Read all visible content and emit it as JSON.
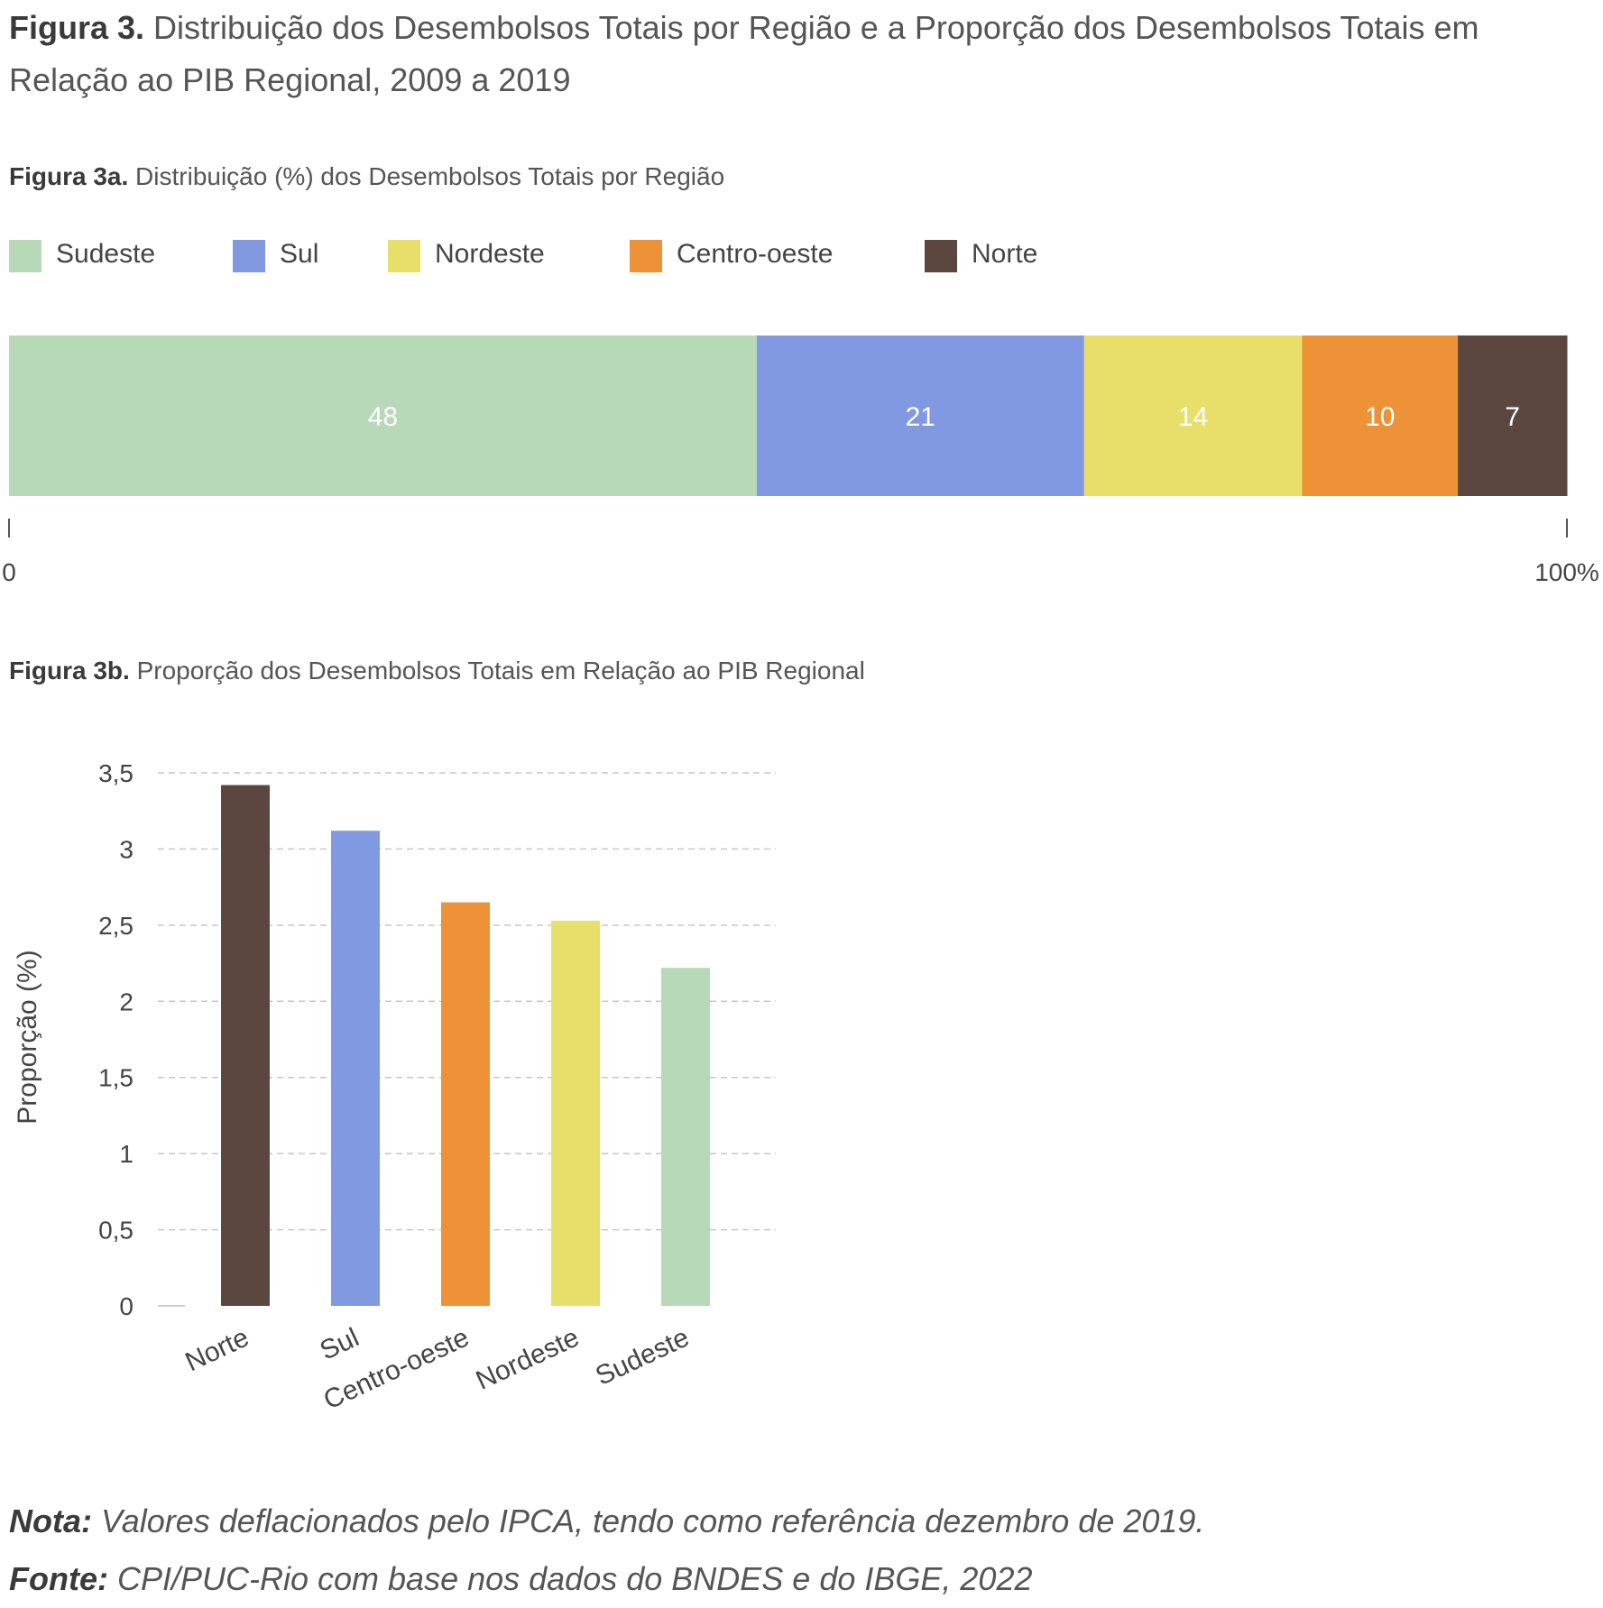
{
  "title": {
    "bold": "Figura 3.",
    "text": "Distribuição dos Desembolsos Totais por Região e a Proporção dos Desembolsos Totais em Relação ao PIB Regional, 2009 a 2019"
  },
  "fig3a": {
    "bold": "Figura 3a.",
    "text": "Distribuição (%) dos Desembolsos Totais por Região"
  },
  "fig3b": {
    "bold": "Figura 3b.",
    "text": "Proporção dos Desembolsos Totais em Relação ao PIB Regional"
  },
  "legend": [
    {
      "label": "Sudeste",
      "color": "#b8d9b8"
    },
    {
      "label": "Sul",
      "color": "#8099e0"
    },
    {
      "label": "Nordeste",
      "color": "#e8df6a"
    },
    {
      "label": "Centro-oeste",
      "color": "#ee9238"
    },
    {
      "label": "Norte",
      "color": "#5b4740"
    }
  ],
  "chart_data": [
    {
      "type": "bar",
      "orientation": "horizontal-stacked",
      "series": [
        {
          "name": "Sudeste",
          "value": 48,
          "color": "#b8d9b8"
        },
        {
          "name": "Sul",
          "value": 21,
          "color": "#8099e0"
        },
        {
          "name": "Nordeste",
          "value": 14,
          "color": "#e8df6a"
        },
        {
          "name": "Centro-oeste",
          "value": 10,
          "color": "#ee9238"
        },
        {
          "name": "Norte",
          "value": 7,
          "color": "#5b4740"
        }
      ],
      "xaxis_labels": [
        "0",
        "100%"
      ],
      "xlim": [
        0,
        100
      ],
      "legend_position": "top"
    },
    {
      "type": "bar",
      "categories": [
        "Norte",
        "Sul",
        "Centro-oeste",
        "Nordeste",
        "Sudeste"
      ],
      "values": [
        3.42,
        3.12,
        2.65,
        2.53,
        2.22
      ],
      "colors": [
        "#5b4740",
        "#8099e0",
        "#ee9238",
        "#e8df6a",
        "#b8d9b8"
      ],
      "ylabel": "Proporção (%)",
      "ylim": [
        0,
        3.5
      ],
      "yticks": [
        "0",
        "0,5",
        "1",
        "1,5",
        "2",
        "2,5",
        "3",
        "3,5"
      ],
      "grid": true
    }
  ],
  "notes": {
    "nota_label": "Nota:",
    "nota_text": "Valores deflacionados pelo IPCA, tendo como referência dezembro de 2019.",
    "fonte_label": "Fonte:",
    "fonte_text": "CPI/PUC-Rio com base nos dados do BNDES e do IBGE, 2022"
  }
}
